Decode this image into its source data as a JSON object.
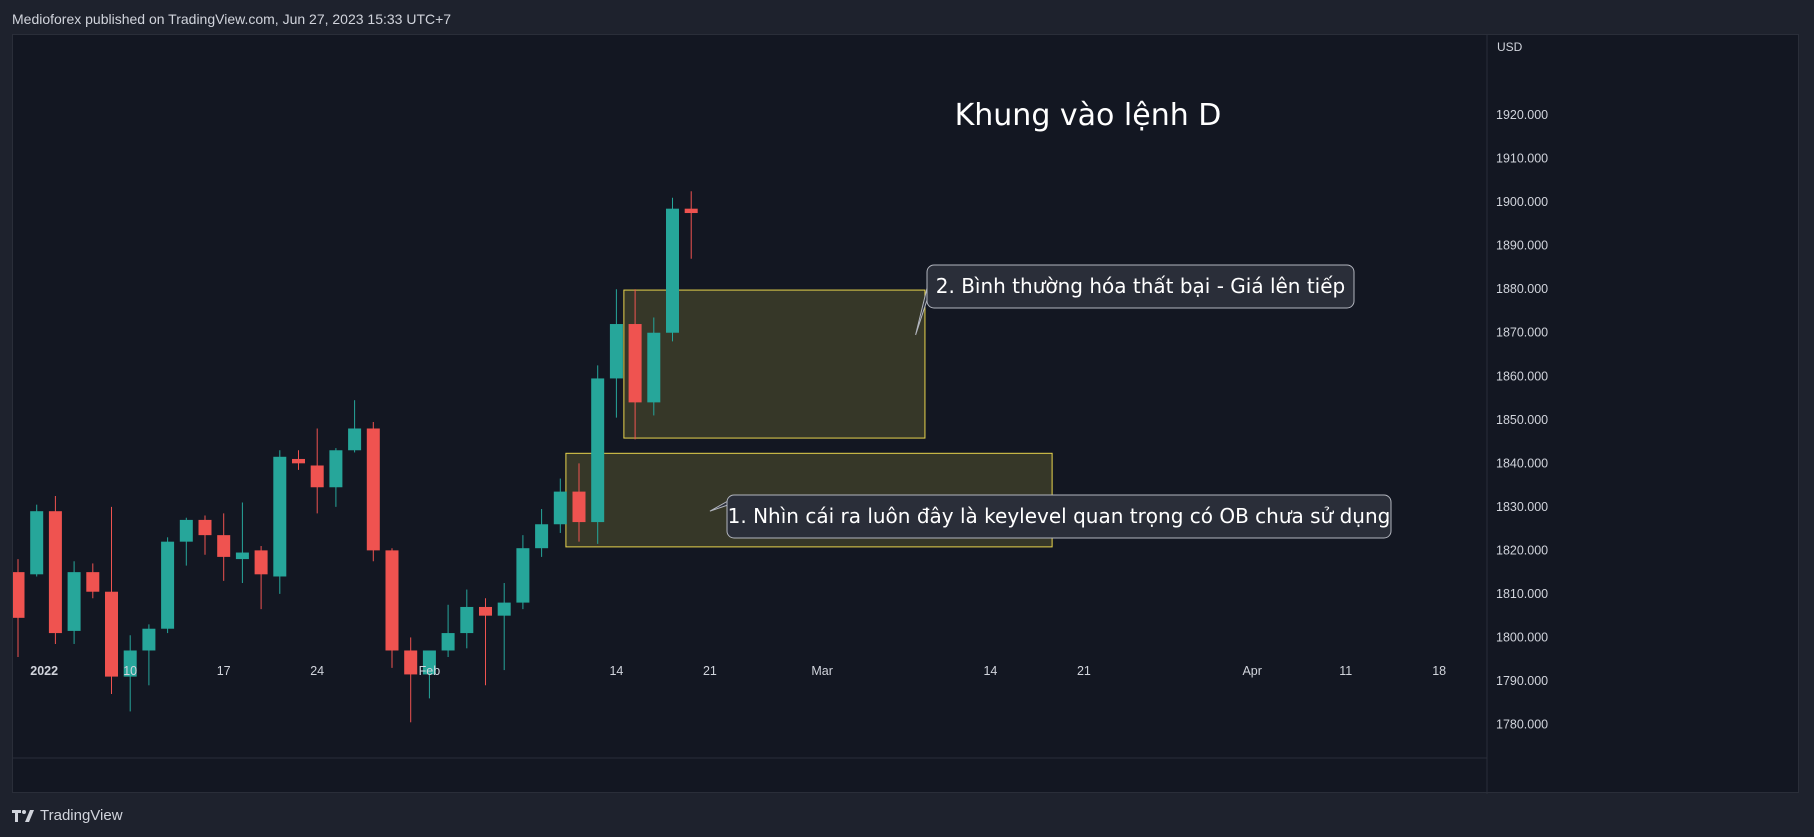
{
  "header": {
    "published_text": "Medioforex published on TradingView.com, Jun 27, 2023 15:33 UTC+7"
  },
  "footer": {
    "brand": "TradingView",
    "logo_icon": "tradingview-logo-icon"
  },
  "colors": {
    "up": "#26a69a",
    "down": "#ef5350",
    "zone_fill": "#3b3b29",
    "zone_border": "#e8d44d",
    "callout_bg": "#2a2e39",
    "callout_border": "#b2b5be",
    "text": "#d1d4dc",
    "background": "#131722"
  },
  "chart_data": {
    "type": "candlestick",
    "symbol_currency": "USD",
    "title": "Khung vào lệnh D",
    "y_ticks": [
      "1920.000",
      "1910.000",
      "1900.000",
      "1890.000",
      "1880.000",
      "1870.000",
      "1860.000",
      "1850.000",
      "1840.000",
      "1830.000",
      "1820.000",
      "1810.000",
      "1800.000",
      "1790.000",
      "1780.000"
    ],
    "ylim": [
      1772.3,
      1938.4
    ],
    "x_ticks": [
      {
        "label": "2022",
        "bar": 1.4,
        "bold": true
      },
      {
        "label": "10",
        "bar": 6
      },
      {
        "label": "17",
        "bar": 11
      },
      {
        "label": "24",
        "bar": 16
      },
      {
        "label": "Feb",
        "bar": 22
      },
      {
        "label": "14",
        "bar": 32
      },
      {
        "label": "21",
        "bar": 37
      },
      {
        "label": "Mar",
        "bar": 43
      },
      {
        "label": "14",
        "bar": 52
      },
      {
        "label": "21",
        "bar": 57
      },
      {
        "label": "Apr",
        "bar": 66
      },
      {
        "label": "11",
        "bar": 71
      },
      {
        "label": "18",
        "bar": 76
      }
    ],
    "candles": [
      [
        1815.0,
        1818.0,
        1795.5,
        1804.5
      ],
      [
        1814.5,
        1830.5,
        1814.0,
        1829.0
      ],
      [
        1829.0,
        1832.5,
        1798.5,
        1801.0
      ],
      [
        1801.5,
        1817.5,
        1798.5,
        1815.0
      ],
      [
        1815.0,
        1817.0,
        1809.0,
        1810.5
      ],
      [
        1810.5,
        1830.0,
        1787.0,
        1791.0
      ],
      [
        1791.0,
        1800.5,
        1783.0,
        1797.0
      ],
      [
        1797.0,
        1803.0,
        1789.0,
        1802.0
      ],
      [
        1802.0,
        1823.0,
        1801.0,
        1822.0
      ],
      [
        1822.0,
        1827.5,
        1816.5,
        1827.0
      ],
      [
        1827.0,
        1828.0,
        1819.0,
        1823.5
      ],
      [
        1823.5,
        1828.5,
        1813.0,
        1818.5
      ],
      [
        1818.0,
        1831.0,
        1812.5,
        1819.5
      ],
      [
        1820.0,
        1821.0,
        1806.5,
        1814.5
      ],
      [
        1814.0,
        1843.0,
        1810.0,
        1841.5
      ],
      [
        1841.0,
        1843.0,
        1838.5,
        1840.0
      ],
      [
        1839.5,
        1848.0,
        1828.5,
        1834.5
      ],
      [
        1834.5,
        1843.5,
        1830.0,
        1843.0
      ],
      [
        1843.0,
        1854.5,
        1842.5,
        1848.0
      ],
      [
        1848.0,
        1849.5,
        1817.5,
        1820.0
      ],
      [
        1820.0,
        1820.5,
        1793.0,
        1797.0
      ],
      [
        1797.0,
        1800.0,
        1780.5,
        1791.5
      ],
      [
        1791.5,
        1797.0,
        1786.0,
        1797.0
      ],
      [
        1797.0,
        1807.5,
        1795.5,
        1801.0
      ],
      [
        1801.0,
        1811.0,
        1797.5,
        1807.0
      ],
      [
        1807.0,
        1809.0,
        1789.0,
        1805.0
      ],
      [
        1805.0,
        1812.5,
        1792.5,
        1808.0
      ],
      [
        1808.0,
        1823.5,
        1806.5,
        1820.5
      ],
      [
        1820.5,
        1829.5,
        1818.5,
        1826.0
      ],
      [
        1826.0,
        1836.5,
        1824.0,
        1833.5
      ],
      [
        1833.5,
        1840.0,
        1822.0,
        1826.5
      ],
      [
        1826.5,
        1862.5,
        1821.5,
        1859.5
      ],
      [
        1859.5,
        1880.0,
        1850.5,
        1872.0
      ],
      [
        1872.0,
        1880.0,
        1845.5,
        1854.0
      ],
      [
        1854.0,
        1873.5,
        1851.0,
        1870.0
      ],
      [
        1870.0,
        1901.0,
        1868.0,
        1898.5
      ],
      [
        1898.5,
        1902.5,
        1887.0,
        1897.5
      ]
    ],
    "zones": [
      {
        "start_bar": 32.4,
        "end_bar": 48.5,
        "top": 1879.8,
        "bottom": 1845.8
      },
      {
        "start_bar": 29.3,
        "end_bar": 55.3,
        "top": 1842.3,
        "bottom": 1820.8
      }
    ],
    "annotations": [
      {
        "text": "2. Bình thường hóa thất bại - Giá lên tiếp",
        "anchor_bar": 48.0,
        "anchor_price": 1869.5
      },
      {
        "text": "1. Nhìn cái ra luôn đây là keylevel quan trọng có OB chưa sử dụng",
        "anchor_bar": 37.0,
        "anchor_price": 1829.0
      }
    ]
  }
}
